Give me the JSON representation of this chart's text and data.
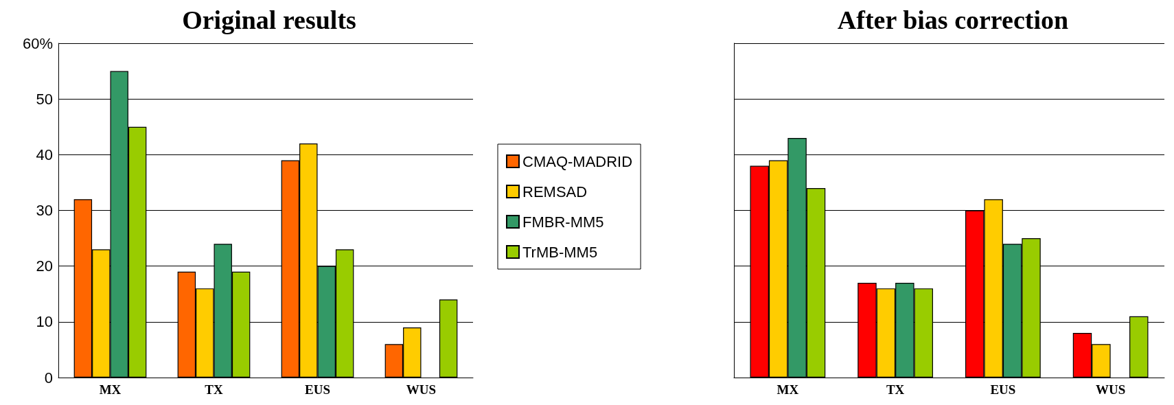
{
  "chart_data": [
    {
      "type": "bar",
      "title": "Original results",
      "categories": [
        "MX",
        "TX",
        "EUS",
        "WUS"
      ],
      "series": [
        {
          "name": "CMAQ-MADRID",
          "color": "#ff6600",
          "values": [
            32,
            19,
            39,
            6
          ]
        },
        {
          "name": "REMSAD",
          "color": "#ffcc00",
          "values": [
            23,
            16,
            42,
            9
          ]
        },
        {
          "name": "FMBR-MM5",
          "color": "#339966",
          "values": [
            55,
            24,
            20,
            null
          ]
        },
        {
          "name": "TrMB-MM5",
          "color": "#99cc00",
          "values": [
            45,
            19,
            23,
            14
          ]
        }
      ],
      "ylim": [
        0,
        60
      ],
      "yticks": [
        0,
        10,
        20,
        30,
        40,
        50,
        {
          "value": 60,
          "label": "60%"
        }
      ],
      "grid": "y",
      "legend": "right"
    },
    {
      "type": "bar",
      "title": "After bias correction",
      "categories": [
        "MX",
        "TX",
        "EUS",
        "WUS"
      ],
      "series": [
        {
          "color": "#ff0000",
          "values": [
            38,
            17,
            30,
            8
          ]
        },
        {
          "color": "#ffcc00",
          "values": [
            39,
            16,
            32,
            6
          ]
        },
        {
          "color": "#339966",
          "values": [
            43,
            17,
            24,
            null
          ]
        },
        {
          "color": "#99cc00",
          "values": [
            34,
            16,
            25,
            11
          ]
        }
      ],
      "ylim": [
        0,
        60
      ],
      "yticks": [
        0,
        10,
        20,
        30,
        40,
        50,
        60
      ],
      "grid": "y",
      "tick_labels": "x"
    }
  ]
}
